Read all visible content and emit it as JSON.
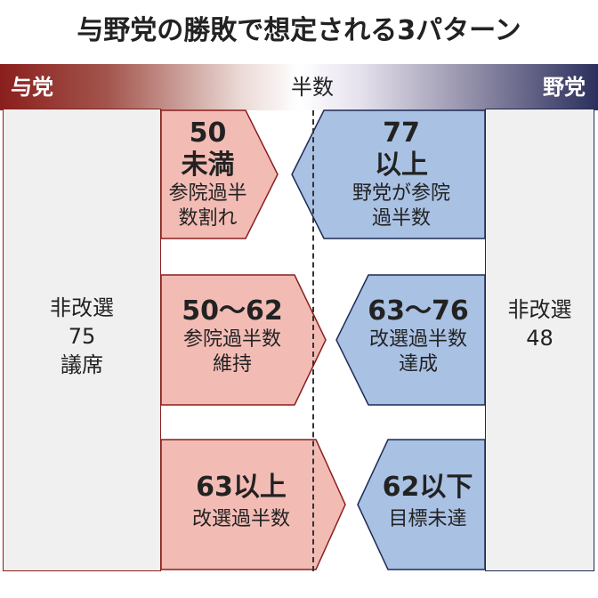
{
  "title": "与野党の勝敗で想定される3パターン",
  "header": {
    "ruling": "与党",
    "half": "半数",
    "opposition": "野党"
  },
  "ruling_noncontest": {
    "line1": "非改選",
    "line2": "75",
    "line3": "議席"
  },
  "opposition_noncontest": {
    "line1": "非改選",
    "line2": "48"
  },
  "patterns": [
    {
      "ruling": {
        "seats_line1": "50",
        "seats_line2": "未満",
        "desc_line1": "参院過半",
        "desc_line2": "数割れ"
      },
      "opposition": {
        "seats_line1": "77",
        "seats_line2": "以上",
        "desc_line1": "野党が参院",
        "desc_line2": "過半数"
      }
    },
    {
      "ruling": {
        "seats": "50～62",
        "desc_line1": "参院過半数",
        "desc_line2": "維持"
      },
      "opposition": {
        "seats": "63～76",
        "desc_line1": "改選過半数",
        "desc_line2": "達成"
      }
    },
    {
      "ruling": {
        "seats": "63以上",
        "desc_line1": "改選過半数"
      },
      "opposition": {
        "seats": "62以下",
        "desc_line1": "目標未達"
      }
    }
  ],
  "colors": {
    "ruling_fill": "#f2bcb5",
    "ruling_stroke": "#8a1f1d",
    "opposition_fill": "#a9c1e3",
    "opposition_stroke": "#1e2a55"
  }
}
